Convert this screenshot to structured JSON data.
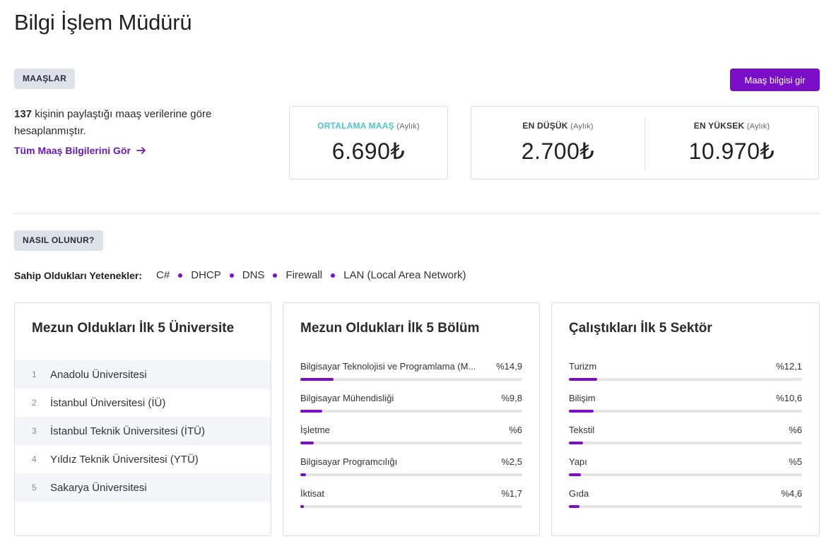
{
  "page": {
    "title": "Bilgi İşlem Müdürü"
  },
  "salaries": {
    "badge": "MAAŞLAR",
    "enter_button": "Maaş bilgisi gir",
    "count": "137",
    "summary_rest": " kişinin paylaştığı maaş verilerine göre hesaplanmıştır.",
    "all_link": "Tüm Maaş Bilgilerini Gör",
    "average": {
      "label": "ORTALAMA MAAŞ",
      "period": "(Aylık)",
      "value": "6.690₺"
    },
    "min": {
      "label": "EN DÜŞÜK",
      "period": "(Aylık)",
      "value": "2.700₺"
    },
    "max": {
      "label": "EN YÜKSEK",
      "period": "(Aylık)",
      "value": "10.970₺"
    },
    "accent_color": "#7b0fc9",
    "average_label_color": "#4fc3d0"
  },
  "how": {
    "badge": "NASIL OLUNUR?",
    "skills_label": "Sahip Oldukları Yetenekler:",
    "skills": [
      "C#",
      "DHCP",
      "DNS",
      "Firewall",
      "LAN (Local Area Network)"
    ]
  },
  "universities": {
    "title": "Mezun Oldukları İlk 5 Üniversite",
    "items": [
      {
        "rank": "1",
        "name": "Anadolu Üniversitesi"
      },
      {
        "rank": "2",
        "name": "İstanbul Üniversitesi (İÜ)"
      },
      {
        "rank": "3",
        "name": "İstanbul Teknik Üniversitesi (İTÜ)"
      },
      {
        "rank": "4",
        "name": "Yıldız Teknik Üniversitesi (YTÜ)"
      },
      {
        "rank": "5",
        "name": "Sakarya Üniversitesi"
      }
    ]
  },
  "departments": {
    "title": "Mezun Oldukları İlk 5 Bölüm",
    "items": [
      {
        "name": "Bilgisayar Teknolojisi ve Programlama (M...",
        "percent_label": "%14,9",
        "percent": 14.9
      },
      {
        "name": "Bilgisayar Mühendisliği",
        "percent_label": "%9,8",
        "percent": 9.8
      },
      {
        "name": "İşletme",
        "percent_label": "%6",
        "percent": 6
      },
      {
        "name": "Bilgisayar Programcılığı",
        "percent_label": "%2,5",
        "percent": 2.5
      },
      {
        "name": "İktisat",
        "percent_label": "%1,7",
        "percent": 1.7
      }
    ]
  },
  "sectors": {
    "title": "Çalıştıkları İlk 5 Sektör",
    "items": [
      {
        "name": "Turizm",
        "percent_label": "%12,1",
        "percent": 12.1
      },
      {
        "name": "Bilişim",
        "percent_label": "%10,6",
        "percent": 10.6
      },
      {
        "name": "Tekstil",
        "percent_label": "%6",
        "percent": 6
      },
      {
        "name": "Yapı",
        "percent_label": "%5",
        "percent": 5
      },
      {
        "name": "Gıda",
        "percent_label": "%4,6",
        "percent": 4.6
      }
    ]
  }
}
